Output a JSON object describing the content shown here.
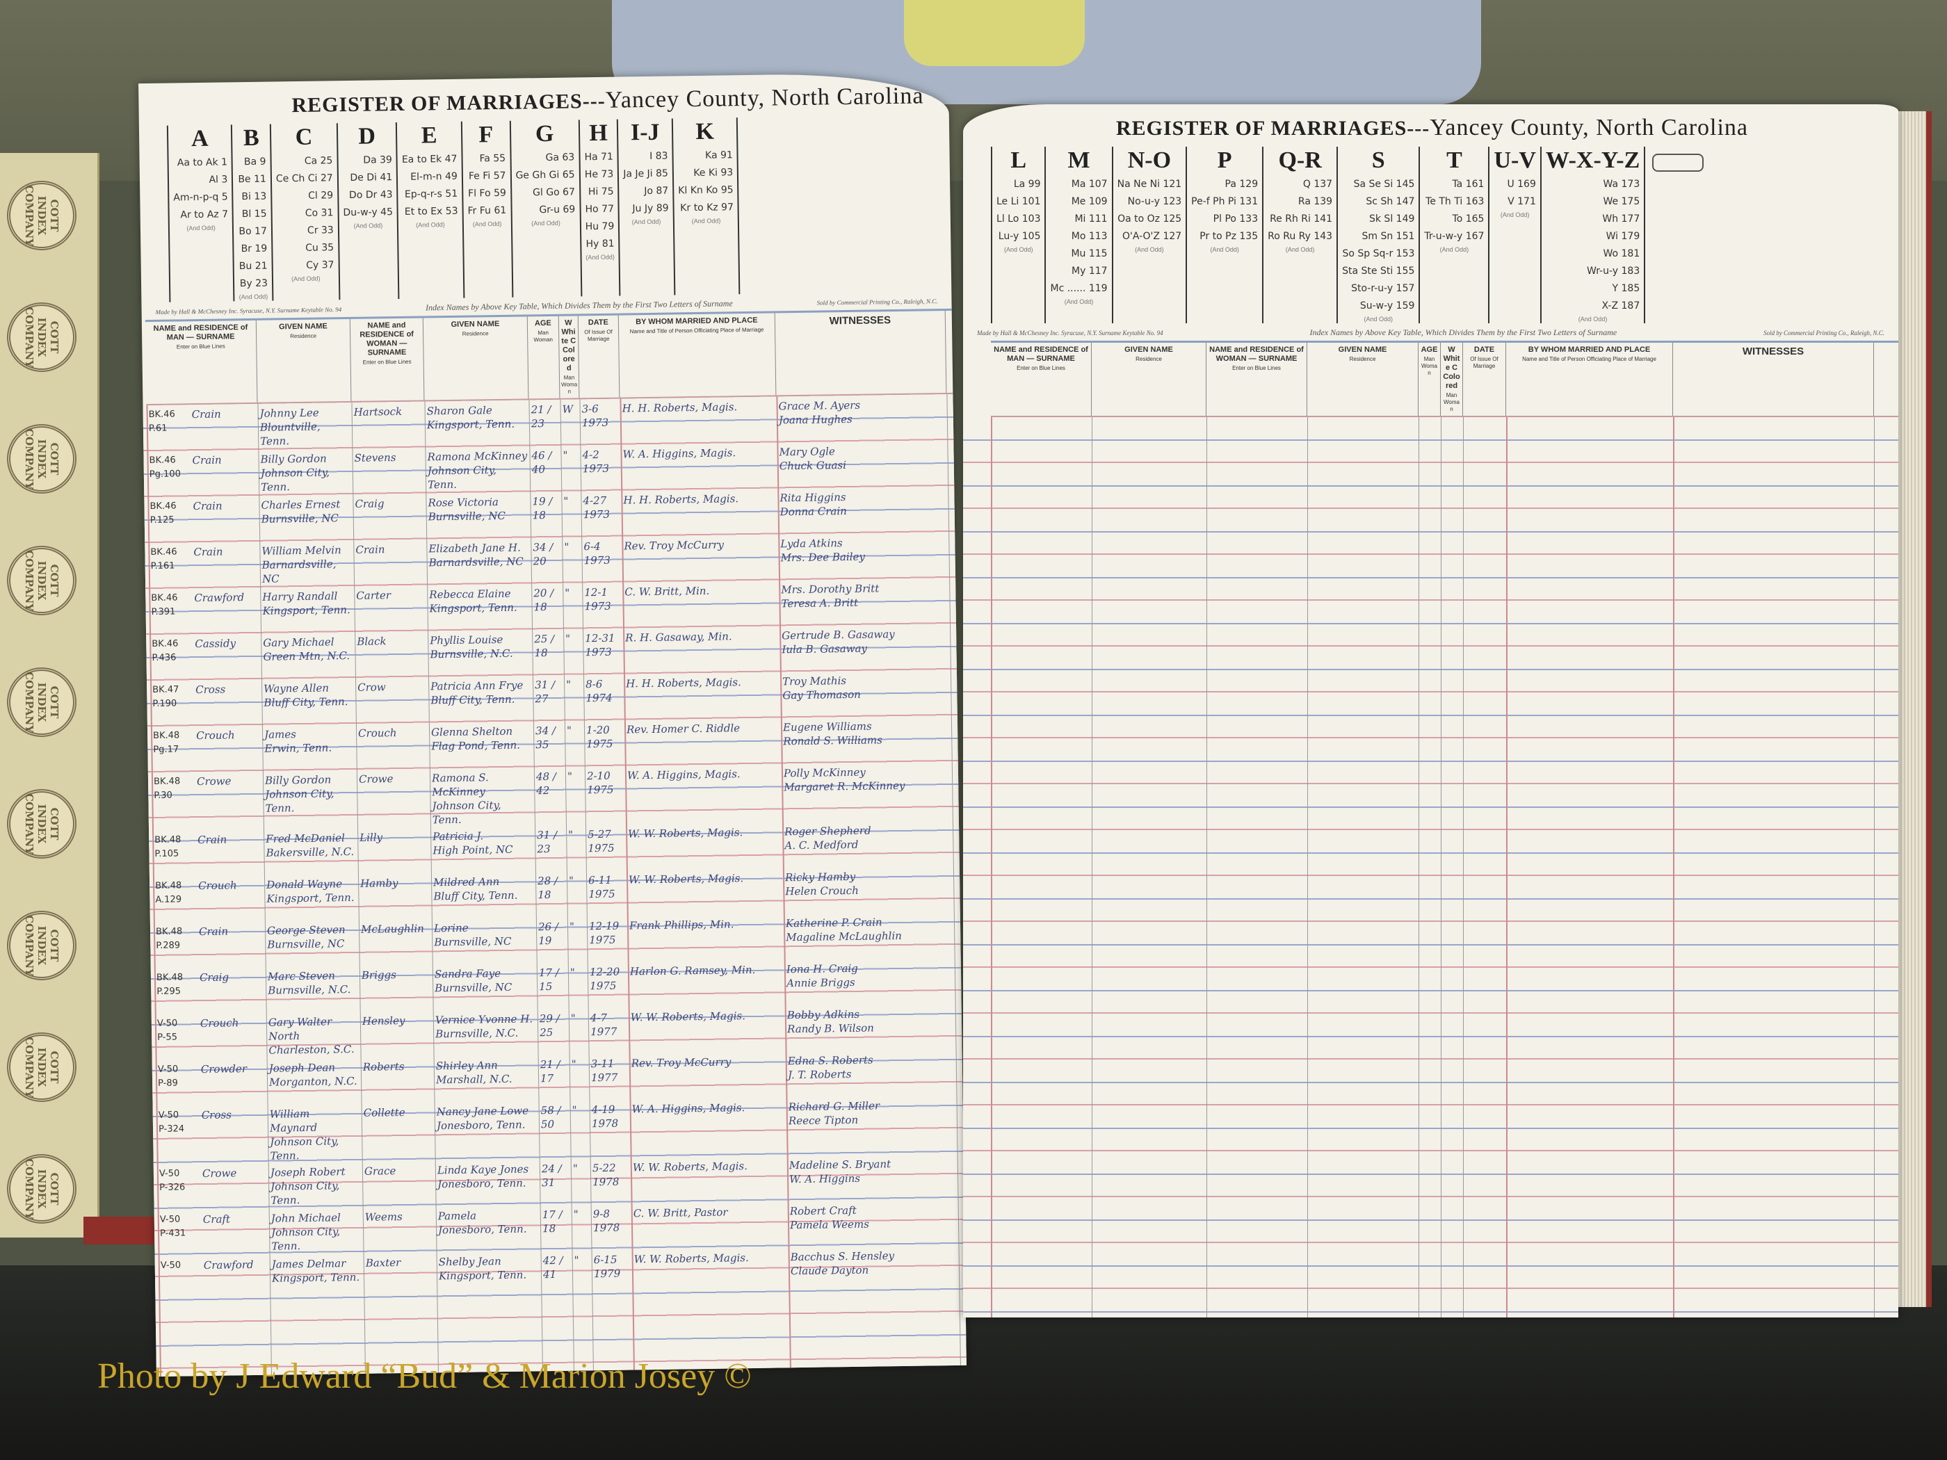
{
  "title": {
    "main": "REGISTER OF MARRIAGES",
    "sep": "---",
    "county": "Yancey County, North Carolina"
  },
  "index_note": "Index Names by Above Key Table, Which Divides Them by the First Two Letters of Surname",
  "maker_note": "Made by Hall & McChesney Inc. Syracuse, N.Y. Surname Keytable No. 94",
  "seller_note": "Sold by Commercial Printing Co., Raleigh, N.C.",
  "and_odd": "(And Odd)",
  "seal_text": "COTT INDEX COMPANY",
  "column_headers": {
    "man": "NAME and RESIDENCE of MAN",
    "woman": "NAME and RESIDENCE of WOMAN",
    "surname": "SURNAME",
    "surname_sub": "Enter on Blue Lines",
    "given": "GIVEN NAME",
    "given_sub": "Residence",
    "age": "AGE",
    "age_sub": "Man Woman",
    "race": "W White C Colored",
    "race_sub": "Man Woman",
    "date": "DATE",
    "date_sub": "Of Issue Of Marriage",
    "officiant": "BY WHOM MARRIED AND PLACE",
    "officiant_sub": "Name and Title of Person Officiating Place of Marriage",
    "witnesses": "WITNESSES"
  },
  "left_index": [
    {
      "letter": "A",
      "entries": [
        "Aa to Ak 1",
        "Al 3",
        "Am-n-p-q 5",
        "Ar to Az 7"
      ]
    },
    {
      "letter": "B",
      "entries": [
        "Ba 9",
        "Be 11",
        "Bi 13",
        "Bl 15",
        "Bo 17",
        "Br 19",
        "Bu 21",
        "By 23"
      ]
    },
    {
      "letter": "C",
      "entries": [
        "Ca 25",
        "Ce Ch Ci 27",
        "Cl 29",
        "Co 31",
        "Cr 33",
        "Cu 35",
        "Cy 37"
      ]
    },
    {
      "letter": "D",
      "entries": [
        "Da 39",
        "De Di 41",
        "Do Dr 43",
        "Du-w-y 45"
      ]
    },
    {
      "letter": "E",
      "entries": [
        "Ea to Ek 47",
        "El-m-n 49",
        "Ep-q-r-s 51",
        "Et to Ex 53"
      ]
    },
    {
      "letter": "F",
      "entries": [
        "Fa 55",
        "Fe Fi 57",
        "Fl Fo 59",
        "Fr Fu 61"
      ]
    },
    {
      "letter": "G",
      "entries": [
        "Ga 63",
        "Ge Gh Gi 65",
        "Gl Go 67",
        "Gr-u 69"
      ]
    },
    {
      "letter": "H",
      "entries": [
        "Ha 71",
        "He 73",
        "Hi 75",
        "Ho 77",
        "Hu 79",
        "Hy 81"
      ]
    },
    {
      "letter": "I-J",
      "entries": [
        "I 83",
        "Ja Je Ji 85",
        "Jo 87",
        "Ju Jy 89"
      ]
    },
    {
      "letter": "K",
      "entries": [
        "Ka 91",
        "Ke Ki 93",
        "Kl Kn Ko 95",
        "Kr to Kz 97"
      ]
    }
  ],
  "right_index": [
    {
      "letter": "L",
      "entries": [
        "La 99",
        "Le Li 101",
        "Ll Lo 103",
        "Lu-y 105"
      ]
    },
    {
      "letter": "M",
      "entries": [
        "Ma 107",
        "Me 109",
        "Mi 111",
        "Mo 113",
        "Mu 115",
        "My 117",
        "Mc ...... 119"
      ]
    },
    {
      "letter": "N-O",
      "entries": [
        "Na Ne Ni 121",
        "No-u-y 123",
        "Oa to Oz 125",
        "O'A-O'Z 127"
      ]
    },
    {
      "letter": "P",
      "entries": [
        "Pa 129",
        "Pe-f Ph Pi 131",
        "Pl Po 133",
        "Pr to Pz 135"
      ]
    },
    {
      "letter": "Q-R",
      "entries": [
        "Q 137",
        "Ra 139",
        "Re Rh Ri 141",
        "Ro Ru Ry 143"
      ]
    },
    {
      "letter": "S",
      "entries": [
        "Sa Se Si 145",
        "Sc Sh 147",
        "Sk Sl 149",
        "Sm Sn 151",
        "So Sp Sq-r 153",
        "Sta Ste Sti 155",
        "Sto-r-u-y 157",
        "Su-w-y 159"
      ]
    },
    {
      "letter": "T",
      "entries": [
        "Ta 161",
        "Te Th Ti 163",
        "To 165",
        "Tr-u-w-y 167"
      ]
    },
    {
      "letter": "U-V",
      "entries": [
        "U 169",
        "V 171"
      ]
    },
    {
      "letter": "W-X-Y-Z",
      "entries": [
        "Wa 173",
        "We 175",
        "Wh 177",
        "Wi 179",
        "Wo 181",
        "Wr-u-y 183",
        "Y 185",
        "X-Z 187"
      ]
    }
  ],
  "entries": [
    {
      "ref": "BK.46 P.61",
      "man_surname": "Crain",
      "man_given": "Johnny Lee",
      "man_res": "Blountville, Tenn.",
      "woman_surname": "Hartsock",
      "woman_given": "Sharon Gale",
      "woman_res": "Kingsport, Tenn.",
      "ages": "21 / 23",
      "race": "W",
      "date": "3-6 1973",
      "officiant": "H. H. Roberts, Magis.",
      "witnesses": [
        "Grace M. Ayers",
        "Joana Hughes"
      ]
    },
    {
      "ref": "BK.46 Pg.100",
      "man_surname": "Crain",
      "man_given": "Billy Gordon",
      "man_res": "Johnson City, Tenn.",
      "woman_surname": "Stevens",
      "woman_given": "Ramona McKinney",
      "woman_res": "Johnson City, Tenn.",
      "ages": "46 / 40",
      "race": "\"",
      "date": "4-2 1973",
      "officiant": "W. A. Higgins, Magis.",
      "witnesses": [
        "Mary Ogle",
        "Chuck Guasi"
      ]
    },
    {
      "ref": "BK.46 P.125",
      "man_surname": "Crain",
      "man_given": "Charles Ernest",
      "man_res": "Burnsville, NC",
      "woman_surname": "Craig",
      "woman_given": "Rose Victoria",
      "woman_res": "Burnsville, NC",
      "ages": "19 / 18",
      "race": "\"",
      "date": "4-27 1973",
      "officiant": "H. H. Roberts, Magis.",
      "witnesses": [
        "Rita Higgins",
        "Donna Crain"
      ]
    },
    {
      "ref": "BK.46 P.161",
      "man_surname": "Crain",
      "man_given": "William Melvin",
      "man_res": "Barnardsville, NC",
      "woman_surname": "Crain",
      "woman_given": "Elizabeth Jane H.",
      "woman_res": "Barnardsville, NC",
      "ages": "34 / 20",
      "race": "\"",
      "date": "6-4 1973",
      "officiant": "Rev. Troy McCurry",
      "witnesses": [
        "Lyda Atkins",
        "Mrs. Dee Bailey"
      ]
    },
    {
      "ref": "BK.46 P.391",
      "man_surname": "Crawford",
      "man_given": "Harry Randall",
      "man_res": "Kingsport, Tenn.",
      "woman_surname": "Carter",
      "woman_given": "Rebecca Elaine",
      "woman_res": "Kingsport, Tenn.",
      "ages": "20 / 18",
      "race": "\"",
      "date": "12-1 1973",
      "officiant": "C. W. Britt, Min.",
      "witnesses": [
        "Mrs. Dorothy Britt",
        "Teresa A. Britt"
      ]
    },
    {
      "ref": "BK.46 P.436",
      "man_surname": "Cassidy",
      "man_given": "Gary Michael",
      "man_res": "Green Mtn, N.C.",
      "woman_surname": "Black",
      "woman_given": "Phyllis Louise",
      "woman_res": "Burnsville, N.C.",
      "ages": "25 / 18",
      "race": "\"",
      "date": "12-31 1973",
      "officiant": "R. H. Gasaway, Min.",
      "witnesses": [
        "Gertrude B. Gasaway",
        "Iula B. Gasaway"
      ]
    },
    {
      "ref": "BK.47 P.190",
      "man_surname": "Cross",
      "man_given": "Wayne Allen",
      "man_res": "Bluff City, Tenn.",
      "woman_surname": "Crow",
      "woman_given": "Patricia Ann Frye",
      "woman_res": "Bluff City, Tenn.",
      "ages": "31 / 27",
      "race": "\"",
      "date": "8-6 1974",
      "officiant": "H. H. Roberts, Magis.",
      "witnesses": [
        "Troy Mathis",
        "Gay Thomason"
      ]
    },
    {
      "ref": "BK.48 Pg.17",
      "man_surname": "Crouch",
      "man_given": "James",
      "man_res": "Erwin, Tenn.",
      "woman_surname": "Crouch",
      "woman_given": "Glenna Shelton",
      "woman_res": "Flag Pond, Tenn.",
      "ages": "34 / 35",
      "race": "\"",
      "date": "1-20 1975",
      "officiant": "Rev. Homer C. Riddle",
      "witnesses": [
        "Eugene Williams",
        "Ronald S. Williams"
      ]
    },
    {
      "ref": "BK.48 P.30",
      "man_surname": "Crowe",
      "man_given": "Billy Gordon",
      "man_res": "Johnson City, Tenn.",
      "woman_surname": "Crowe",
      "woman_given": "Ramona S. McKinney",
      "woman_res": "Johnson City, Tenn.",
      "ages": "48 / 42",
      "race": "\"",
      "date": "2-10 1975",
      "officiant": "W. A. Higgins, Magis.",
      "witnesses": [
        "Polly McKinney",
        "Margaret R. McKinney"
      ]
    },
    {
      "ref": "BK.48 P.105",
      "man_surname": "Crain",
      "man_given": "Fred McDaniel",
      "man_res": "Bakersville, N.C.",
      "woman_surname": "Lilly",
      "woman_given": "Patricia J.",
      "woman_res": "High Point, NC",
      "ages": "31 / 23",
      "race": "\"",
      "date": "5-27 1975",
      "officiant": "W. W. Roberts, Magis.",
      "witnesses": [
        "Roger Shepherd",
        "A. C. Medford"
      ]
    },
    {
      "ref": "BK.48 A.129",
      "man_surname": "Crouch",
      "man_given": "Donald Wayne",
      "man_res": "Kingsport, Tenn.",
      "woman_surname": "Hamby",
      "woman_given": "Mildred Ann",
      "woman_res": "Bluff City, Tenn.",
      "ages": "28 / 18",
      "race": "\"",
      "date": "6-11 1975",
      "officiant": "W. W. Roberts, Magis.",
      "witnesses": [
        "Ricky Hamby",
        "Helen Crouch"
      ]
    },
    {
      "ref": "BK.48 P.289",
      "man_surname": "Crain",
      "man_given": "George Steven",
      "man_res": "Burnsville, NC",
      "woman_surname": "McLaughlin",
      "woman_given": "Lorine",
      "woman_res": "Burnsville, NC",
      "ages": "26 / 19",
      "race": "\"",
      "date": "12-19 1975",
      "officiant": "Frank Phillips, Min.",
      "witnesses": [
        "Katherine P. Crain",
        "Magaline McLaughlin"
      ]
    },
    {
      "ref": "BK.48 P.295",
      "man_surname": "Craig",
      "man_given": "Marc Steven",
      "man_res": "Burnsville, N.C.",
      "woman_surname": "Briggs",
      "woman_given": "Sandra Faye",
      "woman_res": "Burnsville, NC",
      "ages": "17 / 15",
      "race": "\"",
      "date": "12-20 1975",
      "officiant": "Harlon G. Ramsey, Min.",
      "witnesses": [
        "Iona H. Craig",
        "Annie Briggs"
      ]
    },
    {
      "ref": "V-50 P-55",
      "man_surname": "Crouch",
      "man_given": "Gary Walter",
      "man_res": "North Charleston, S.C.",
      "woman_surname": "Hensley",
      "woman_given": "Vernice Yvonne H.",
      "woman_res": "Burnsville, N.C.",
      "ages": "29 / 25",
      "race": "\"",
      "date": "4-7 1977",
      "officiant": "W. W. Roberts, Magis.",
      "witnesses": [
        "Bobby Adkins",
        "Randy B. Wilson"
      ]
    },
    {
      "ref": "V-50 P-89",
      "man_surname": "Crowder",
      "man_given": "Joseph Dean",
      "man_res": "Morganton, N.C.",
      "woman_surname": "Roberts",
      "woman_given": "Shirley Ann",
      "woman_res": "Marshall, N.C.",
      "ages": "21 / 17",
      "race": "\"",
      "date": "3-11 1977",
      "officiant": "Rev. Troy McCurry",
      "witnesses": [
        "Edna S. Roberts",
        "J. T. Roberts"
      ]
    },
    {
      "ref": "V-50 P-324",
      "man_surname": "Cross",
      "man_given": "William Maynard",
      "man_res": "Johnson City, Tenn.",
      "woman_surname": "Collette",
      "woman_given": "Nancy Jane Lowe",
      "woman_res": "Jonesboro, Tenn.",
      "ages": "58 / 50",
      "race": "\"",
      "date": "4-19 1978",
      "officiant": "W. A. Higgins, Magis.",
      "witnesses": [
        "Richard G. Miller",
        "Reece Tipton"
      ]
    },
    {
      "ref": "V-50 P-326",
      "man_surname": "Crowe",
      "man_given": "Joseph Robert",
      "man_res": "Johnson City, Tenn.",
      "woman_surname": "Grace",
      "woman_given": "Linda Kaye Jones",
      "woman_res": "Jonesboro, Tenn.",
      "ages": "24 / 31",
      "race": "\"",
      "date": "5-22 1978",
      "officiant": "W. W. Roberts, Magis.",
      "witnesses": [
        "Madeline S. Bryant",
        "W. A. Higgins"
      ]
    },
    {
      "ref": "V-50 P-431",
      "man_surname": "Craft",
      "man_given": "John Michael",
      "man_res": "Johnson City, Tenn.",
      "woman_surname": "Weems",
      "woman_given": "Pamela",
      "woman_res": "Jonesboro, Tenn.",
      "ages": "17 / 18",
      "race": "\"",
      "date": "9-8 1978",
      "officiant": "C. W. Britt, Pastor",
      "witnesses": [
        "Robert Craft",
        "Pamela Weems"
      ]
    },
    {
      "ref": "V-50",
      "man_surname": "Crawford",
      "man_given": "James Delmar",
      "man_res": "Kingsport, Tenn.",
      "woman_surname": "Baxter",
      "woman_given": "Shelby Jean",
      "woman_res": "Kingsport, Tenn.",
      "ages": "42 / 41",
      "race": "\"",
      "date": "6-15 1979",
      "officiant": "W. W. Roberts, Magis.",
      "witnesses": [
        "Bacchus S. Hensley",
        "Claude Dayton"
      ]
    }
  ],
  "caption": "Photo by J Edward “Bud” & Marion Josey ©",
  "colors": {
    "ink": "#3b4677",
    "paper": "#f3f1e8",
    "blue_rule": "#9aa6cc",
    "red_rule": "#d8a0a8",
    "caption": "#c9a52a",
    "book_cover": "#8e2f2a"
  }
}
